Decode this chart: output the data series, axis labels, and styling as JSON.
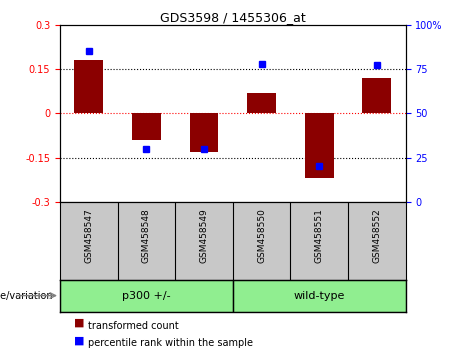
{
  "title": "GDS3598 / 1455306_at",
  "samples": [
    "GSM458547",
    "GSM458548",
    "GSM458549",
    "GSM458550",
    "GSM458551",
    "GSM458552"
  ],
  "red_values": [
    0.18,
    -0.09,
    -0.13,
    0.07,
    -0.22,
    0.12
  ],
  "blue_values": [
    85,
    30,
    30,
    78,
    20,
    77
  ],
  "ylim_left": [
    -0.3,
    0.3
  ],
  "ylim_right": [
    0,
    100
  ],
  "yticks_left": [
    -0.3,
    -0.15,
    0.0,
    0.15,
    0.3
  ],
  "yticks_right": [
    0,
    25,
    50,
    75,
    100
  ],
  "red_color": "#8B0000",
  "bar_width": 0.5,
  "legend_red": "transformed count",
  "legend_blue": "percentile rank within the sample",
  "genotype_label": "genotype/variation",
  "group_label_1": "p300 +/-",
  "group_label_2": "wild-type",
  "plot_bg": "#FFFFFF",
  "tick_area_bg": "#C8C8C8",
  "group_color": "#90EE90",
  "title_fontsize": 9
}
